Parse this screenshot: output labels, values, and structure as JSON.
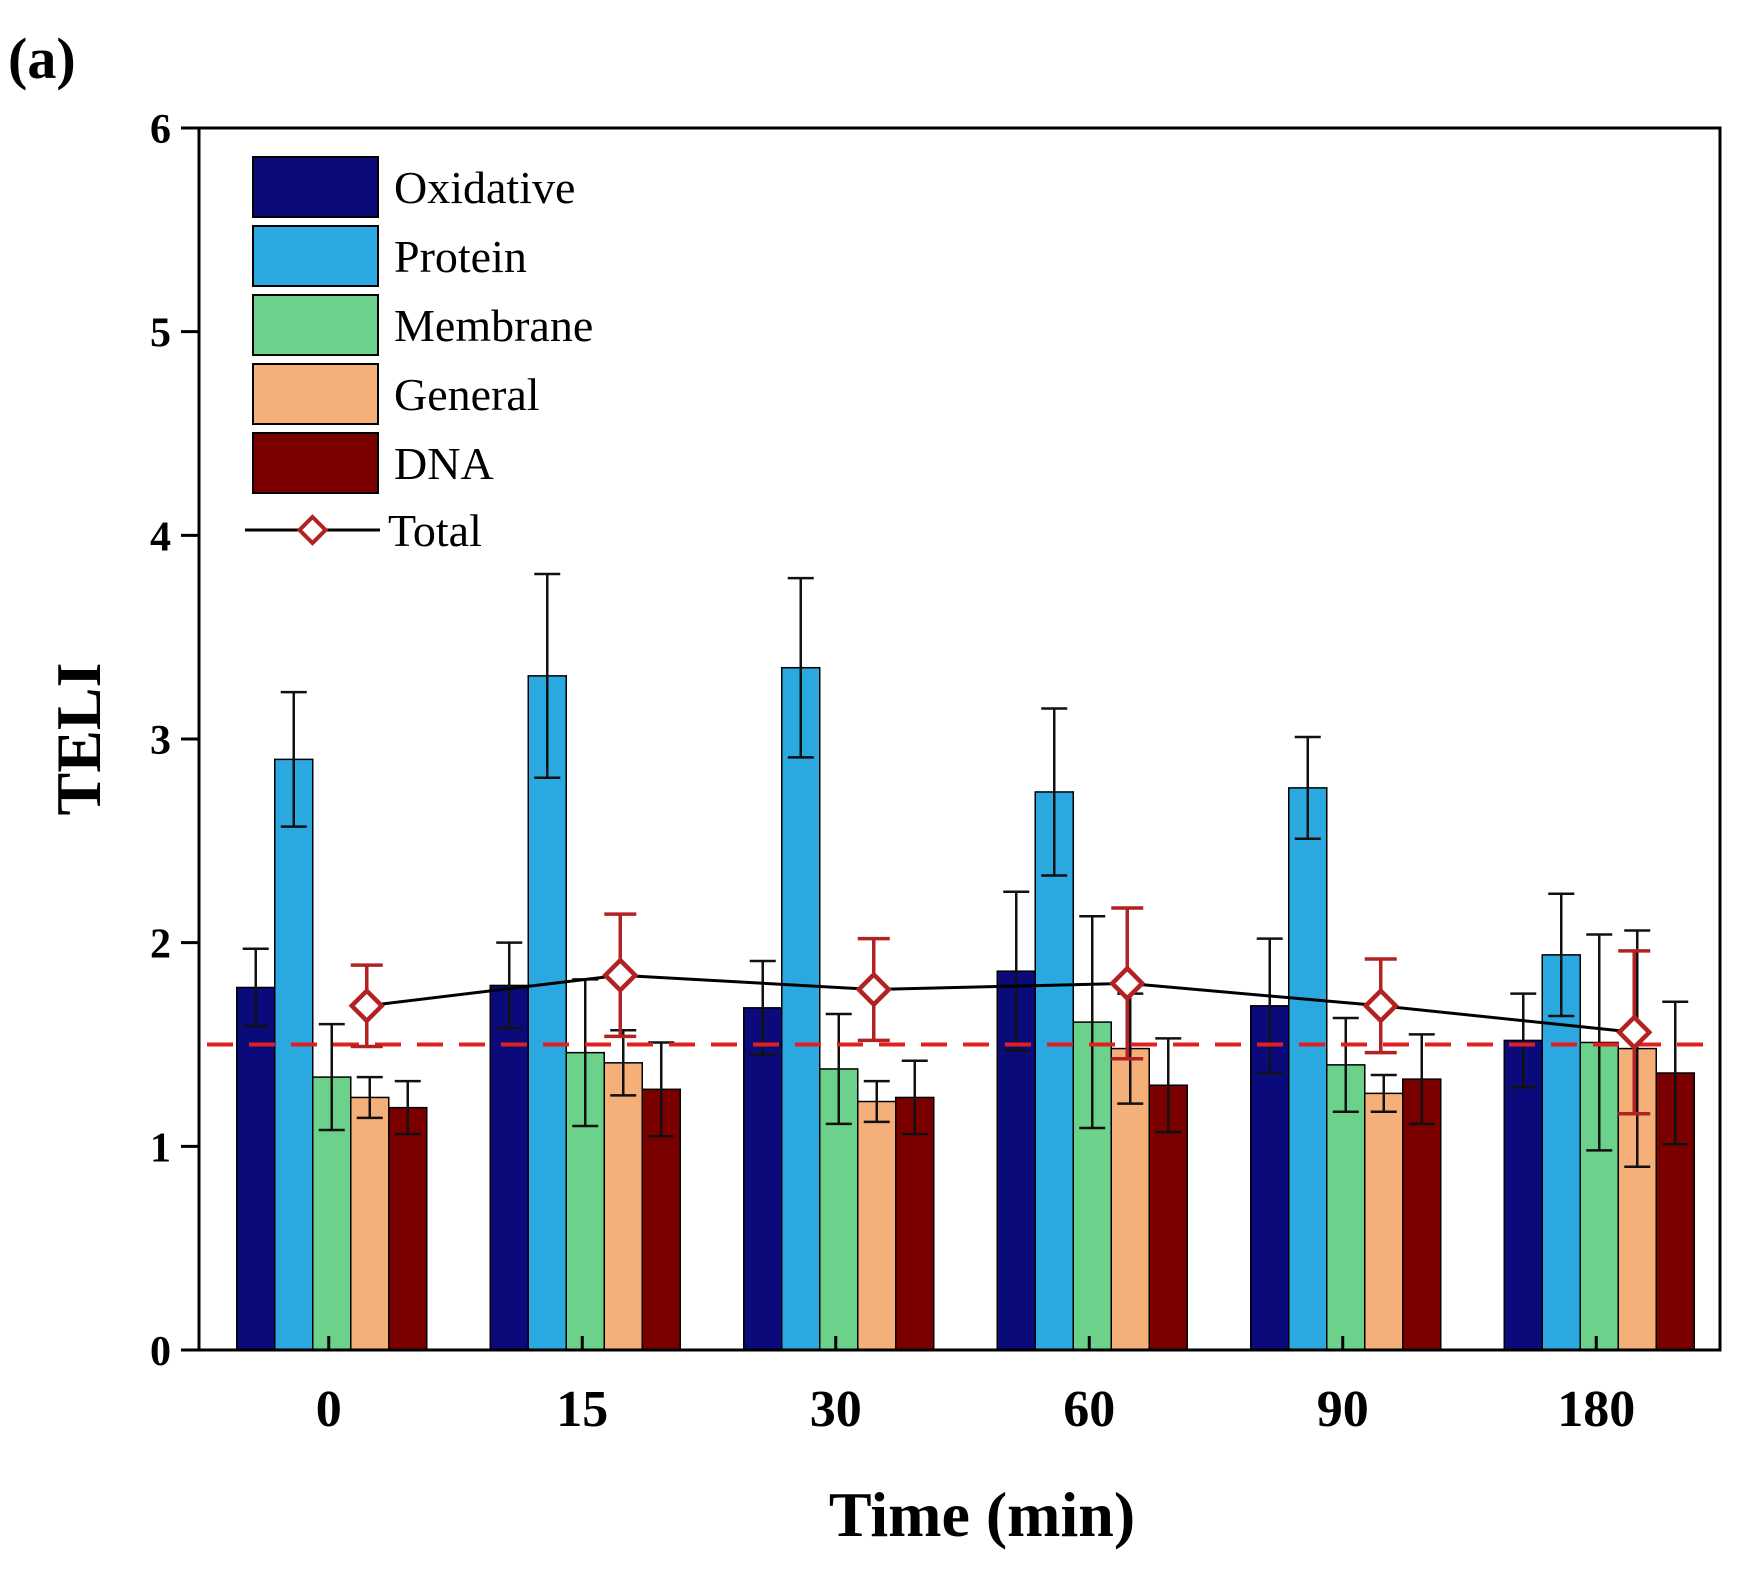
{
  "panel_label": "(a)",
  "chart_data": {
    "type": "bar",
    "xlabel": "Time (min)",
    "ylabel": "TELI",
    "ylim": [
      0,
      6
    ],
    "yticks": [
      "0",
      "1",
      "2",
      "3",
      "4",
      "5",
      "6"
    ],
    "categories": [
      "0",
      "15",
      "30",
      "60",
      "90",
      "180"
    ],
    "series": [
      {
        "name": "Oxidative",
        "color": "#0a0a7a",
        "values": [
          1.78,
          1.79,
          1.68,
          1.86,
          1.69,
          1.52
        ],
        "errors": [
          0.19,
          0.21,
          0.23,
          0.39,
          0.33,
          0.23
        ]
      },
      {
        "name": "Protein",
        "color": "#2ba8e0",
        "values": [
          2.9,
          3.31,
          3.35,
          2.74,
          2.76,
          1.94
        ],
        "errors": [
          0.33,
          0.5,
          0.44,
          0.41,
          0.25,
          0.3
        ]
      },
      {
        "name": "Membrane",
        "color": "#6cd28b",
        "values": [
          1.34,
          1.46,
          1.38,
          1.61,
          1.4,
          1.51
        ],
        "errors": [
          0.26,
          0.36,
          0.27,
          0.52,
          0.23,
          0.53
        ]
      },
      {
        "name": "General",
        "color": "#f5b07a",
        "values": [
          1.24,
          1.41,
          1.22,
          1.48,
          1.26,
          1.48
        ],
        "errors": [
          0.1,
          0.16,
          0.1,
          0.27,
          0.09,
          0.58
        ]
      },
      {
        "name": "DNA",
        "color": "#7a0000",
        "values": [
          1.19,
          1.28,
          1.24,
          1.3,
          1.33,
          1.36
        ],
        "errors": [
          0.13,
          0.23,
          0.18,
          0.23,
          0.22,
          0.35
        ]
      }
    ],
    "total": {
      "name": "Total",
      "line_color": "#000000",
      "marker_color": "#b22222",
      "values": [
        1.69,
        1.84,
        1.77,
        1.8,
        1.69,
        1.56
      ],
      "errors": [
        0.2,
        0.3,
        0.25,
        0.37,
        0.23,
        0.4
      ]
    },
    "threshold": {
      "value": 1.5,
      "color": "#e02020",
      "style": "dashed"
    },
    "legend_position": "top-left"
  }
}
